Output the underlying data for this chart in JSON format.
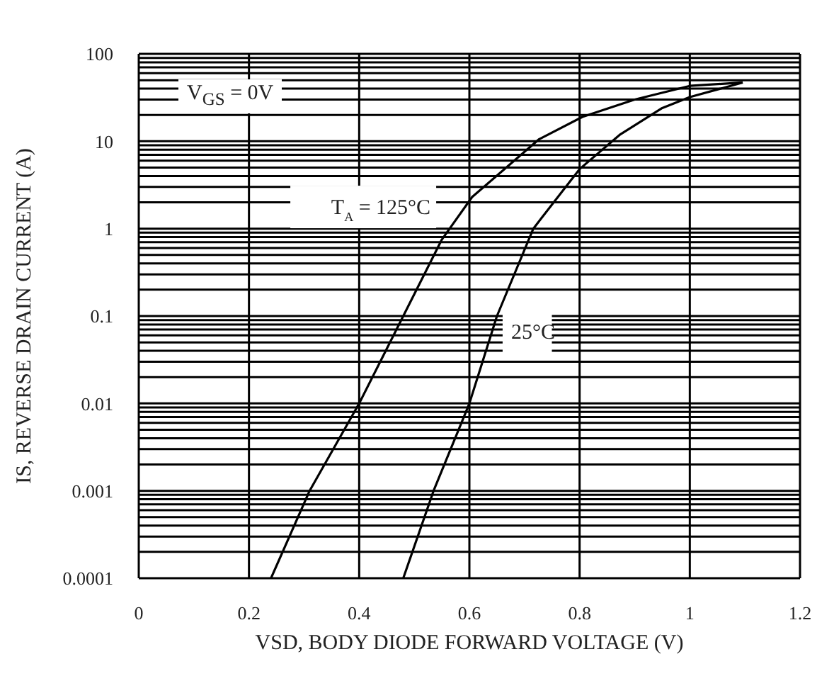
{
  "chart_data": {
    "type": "line",
    "xlabel": "VSD, BODY DIODE FORWARD VOLTAGE (V)",
    "ylabel": "IS, REVERSE DRAIN CURRENT (A)",
    "annotations": [
      "V$_{GS}$ = 0V"
    ],
    "series": [
      {
        "name": "T$_{A}$ = 125°C",
        "color": "#000000",
        "x": [
          0.24,
          0.31,
          0.4,
          0.48,
          0.55,
          0.605,
          0.726,
          0.805,
          0.9,
          1.0,
          1.096
        ],
        "values": [
          0.0001,
          0.001,
          0.01,
          0.1,
          0.75,
          2.3,
          10.5,
          19,
          30,
          43,
          47
        ]
      },
      {
        "name": "25°C",
        "color": "#000000",
        "x": [
          0.48,
          0.535,
          0.6,
          0.65,
          0.716,
          0.8,
          0.874,
          0.95,
          1.0,
          1.096
        ],
        "values": [
          0.0001,
          0.001,
          0.01,
          0.1,
          1,
          4.8,
          12,
          24,
          32,
          47
        ]
      }
    ],
    "xlim": [
      0,
      1.2
    ],
    "xticks": [
      0,
      0.2,
      0.4,
      0.6,
      0.8,
      1,
      1.2
    ],
    "ylim": [
      0.0001,
      100
    ],
    "yticks": [
      0.0001,
      0.001,
      0.01,
      0.1,
      1,
      10,
      100
    ],
    "log": "y",
    "grid": true,
    "marker": "none",
    "line_style": "solid"
  }
}
